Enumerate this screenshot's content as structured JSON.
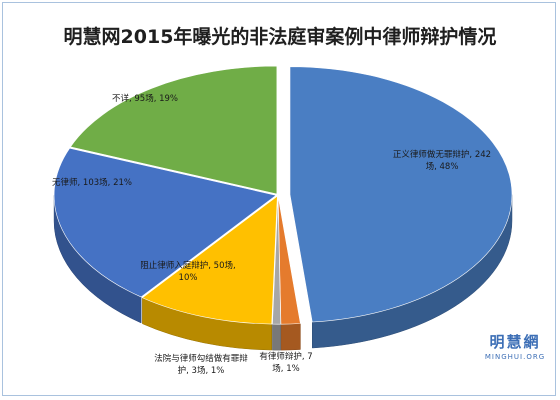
{
  "chart_data": {
    "type": "pie",
    "title": "明慧网2015年曝光的非法庭审案例中律师辩护情况",
    "slices": [
      {
        "label_lines": [
          "正义律师做无罪辩护, 242",
          "场, 48%"
        ],
        "value": 242,
        "percent": 48,
        "color": "#4a7ec3"
      },
      {
        "label_lines": [
          "有律师辩护, 7",
          "场, 1%"
        ],
        "value": 7,
        "percent": 1,
        "color": "#e57b2d"
      },
      {
        "label_lines": [
          "法院与律师勾结做有罪辩",
          "护, 3场, 1%"
        ],
        "value": 3,
        "percent": 1,
        "color": "#a7a7a7"
      },
      {
        "label_lines": [
          "阻止律师入庭辩护, 50场,",
          "10%"
        ],
        "value": 50,
        "percent": 10,
        "color": "#ffc000"
      },
      {
        "label_lines": [
          "无律师, 103场, 21%"
        ],
        "value": 103,
        "percent": 21,
        "color": "#4572c4"
      },
      {
        "label_lines": [
          "不详, 95场, 19%"
        ],
        "value": 95,
        "percent": 19,
        "color": "#70ad47"
      }
    ],
    "legend": "none",
    "style": "3d-exploded"
  },
  "watermark": {
    "chinese": "明慧網",
    "english": "MINGHUI.ORG"
  }
}
